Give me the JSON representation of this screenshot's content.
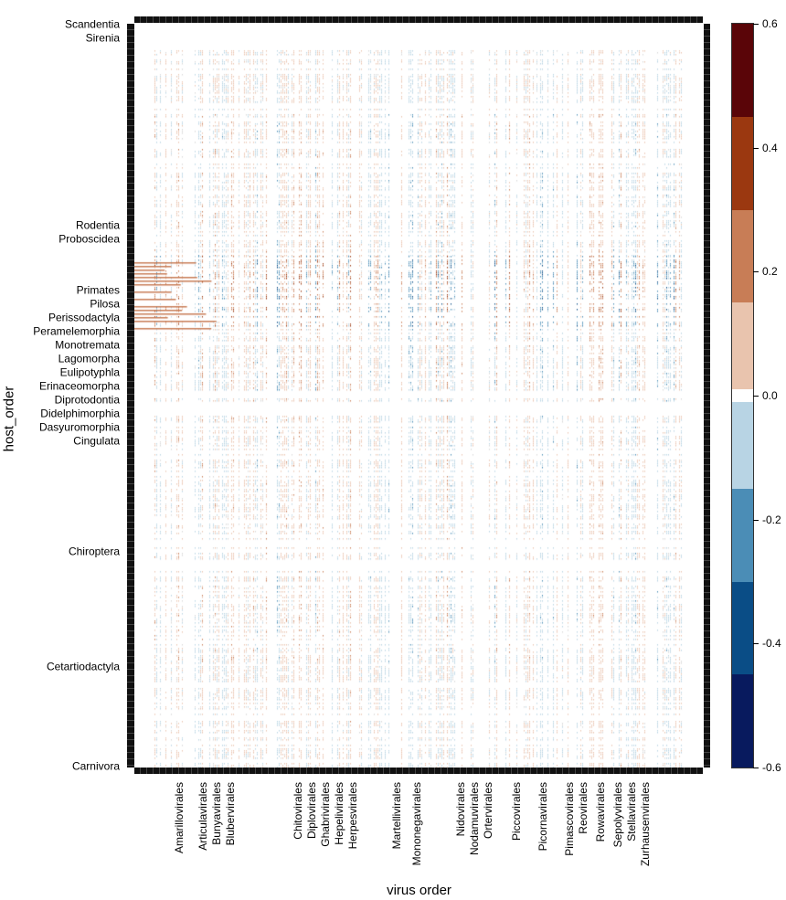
{
  "chart_data": {
    "type": "heatmap",
    "xlabel": "virus order",
    "ylabel": "host_order",
    "x_tick_labels": [
      "Amarillovirales",
      "Articulavirales",
      "Bunyavirales",
      "Blubervirales",
      "Chitovirales",
      "Diplovirales",
      "Ghabrivirales",
      "Hepelivirales",
      "Herpesvirales",
      "Martellivirales",
      "Mononegavirales",
      "Nidovirales",
      "Nodamuvirales",
      "Ortervirales",
      "Piccovirales",
      "Picornavirales",
      "Pimascovirales",
      "Reovirales",
      "Rowavirales",
      "Sepolyvirales",
      "Stellavirales",
      "Zurhausenvirales"
    ],
    "y_tick_labels": [
      "Scandentia",
      "Sirenia",
      "Rodentia",
      "Proboscidea",
      "Primates",
      "Pilosa",
      "Perissodactyla",
      "Peramelemorphia",
      "Monotremata",
      "Lagomorpha",
      "Eulipotyphla",
      "Erinaceomorpha",
      "Diprotodontia",
      "Didelphimorphia",
      "Dasyuromorphia",
      "Cingulata",
      "Chiroptera",
      "Cetartiodactyla",
      "Carnivora"
    ],
    "colorbar": {
      "range": [
        -0.6,
        0.6
      ],
      "tick_labels": [
        "0.6",
        "0.4",
        "0.2",
        "0.0",
        "-0.2",
        "-0.4",
        "-0.6"
      ],
      "breaks": [
        0.6,
        0.45,
        0.3,
        0.15,
        0.01,
        -0.01,
        -0.15,
        -0.3,
        -0.45,
        -0.6
      ],
      "colors": [
        "#5a0508",
        "#9b3810",
        "#c87d56",
        "#e9c4ae",
        "#ffffff",
        "#b8d4e4",
        "#4b8db6",
        "#0a4d86",
        "#081a5e"
      ]
    }
  }
}
